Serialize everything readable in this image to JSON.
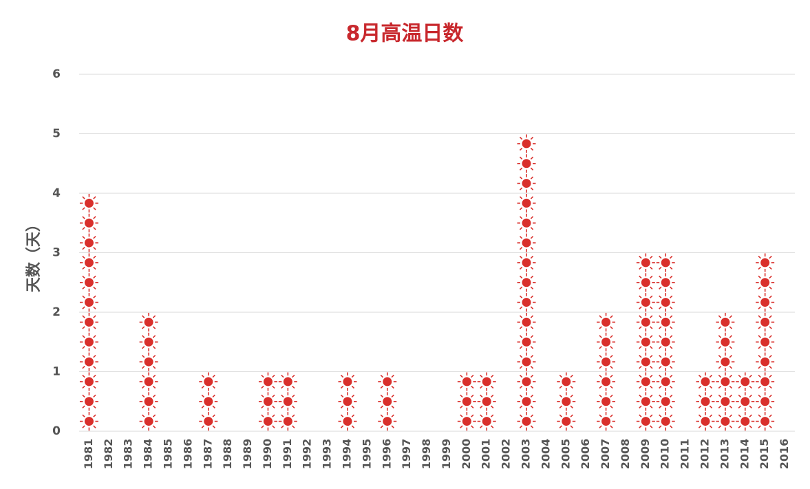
{
  "chart_data": {
    "type": "pictograph",
    "title": "8月高温日数",
    "y_label": "天数（天）",
    "categories": [
      "1981",
      "1982",
      "1983",
      "1984",
      "1985",
      "1986",
      "1987",
      "1988",
      "1989",
      "1990",
      "1991",
      "1992",
      "1993",
      "1994",
      "1995",
      "1996",
      "1997",
      "1998",
      "1999",
      "2000",
      "2001",
      "2002",
      "2003",
      "2004",
      "2005",
      "2006",
      "2007",
      "2008",
      "2009",
      "2010",
      "2011",
      "2012",
      "2013",
      "2014",
      "2015",
      "2016"
    ],
    "values": [
      4,
      0,
      0,
      2,
      0,
      0,
      1,
      0,
      0,
      1,
      1,
      0,
      0,
      1,
      0,
      1,
      0,
      0,
      0,
      1,
      1,
      0,
      5,
      0,
      1,
      0,
      2,
      0,
      3,
      3,
      0,
      1,
      2,
      1,
      3,
      0
    ],
    "icons_per_unit": 3,
    "color": "#d9302c",
    "ylim": [
      0,
      6
    ],
    "yticks": [
      0,
      1,
      2,
      3,
      4,
      5,
      6
    ],
    "grid": true
  }
}
